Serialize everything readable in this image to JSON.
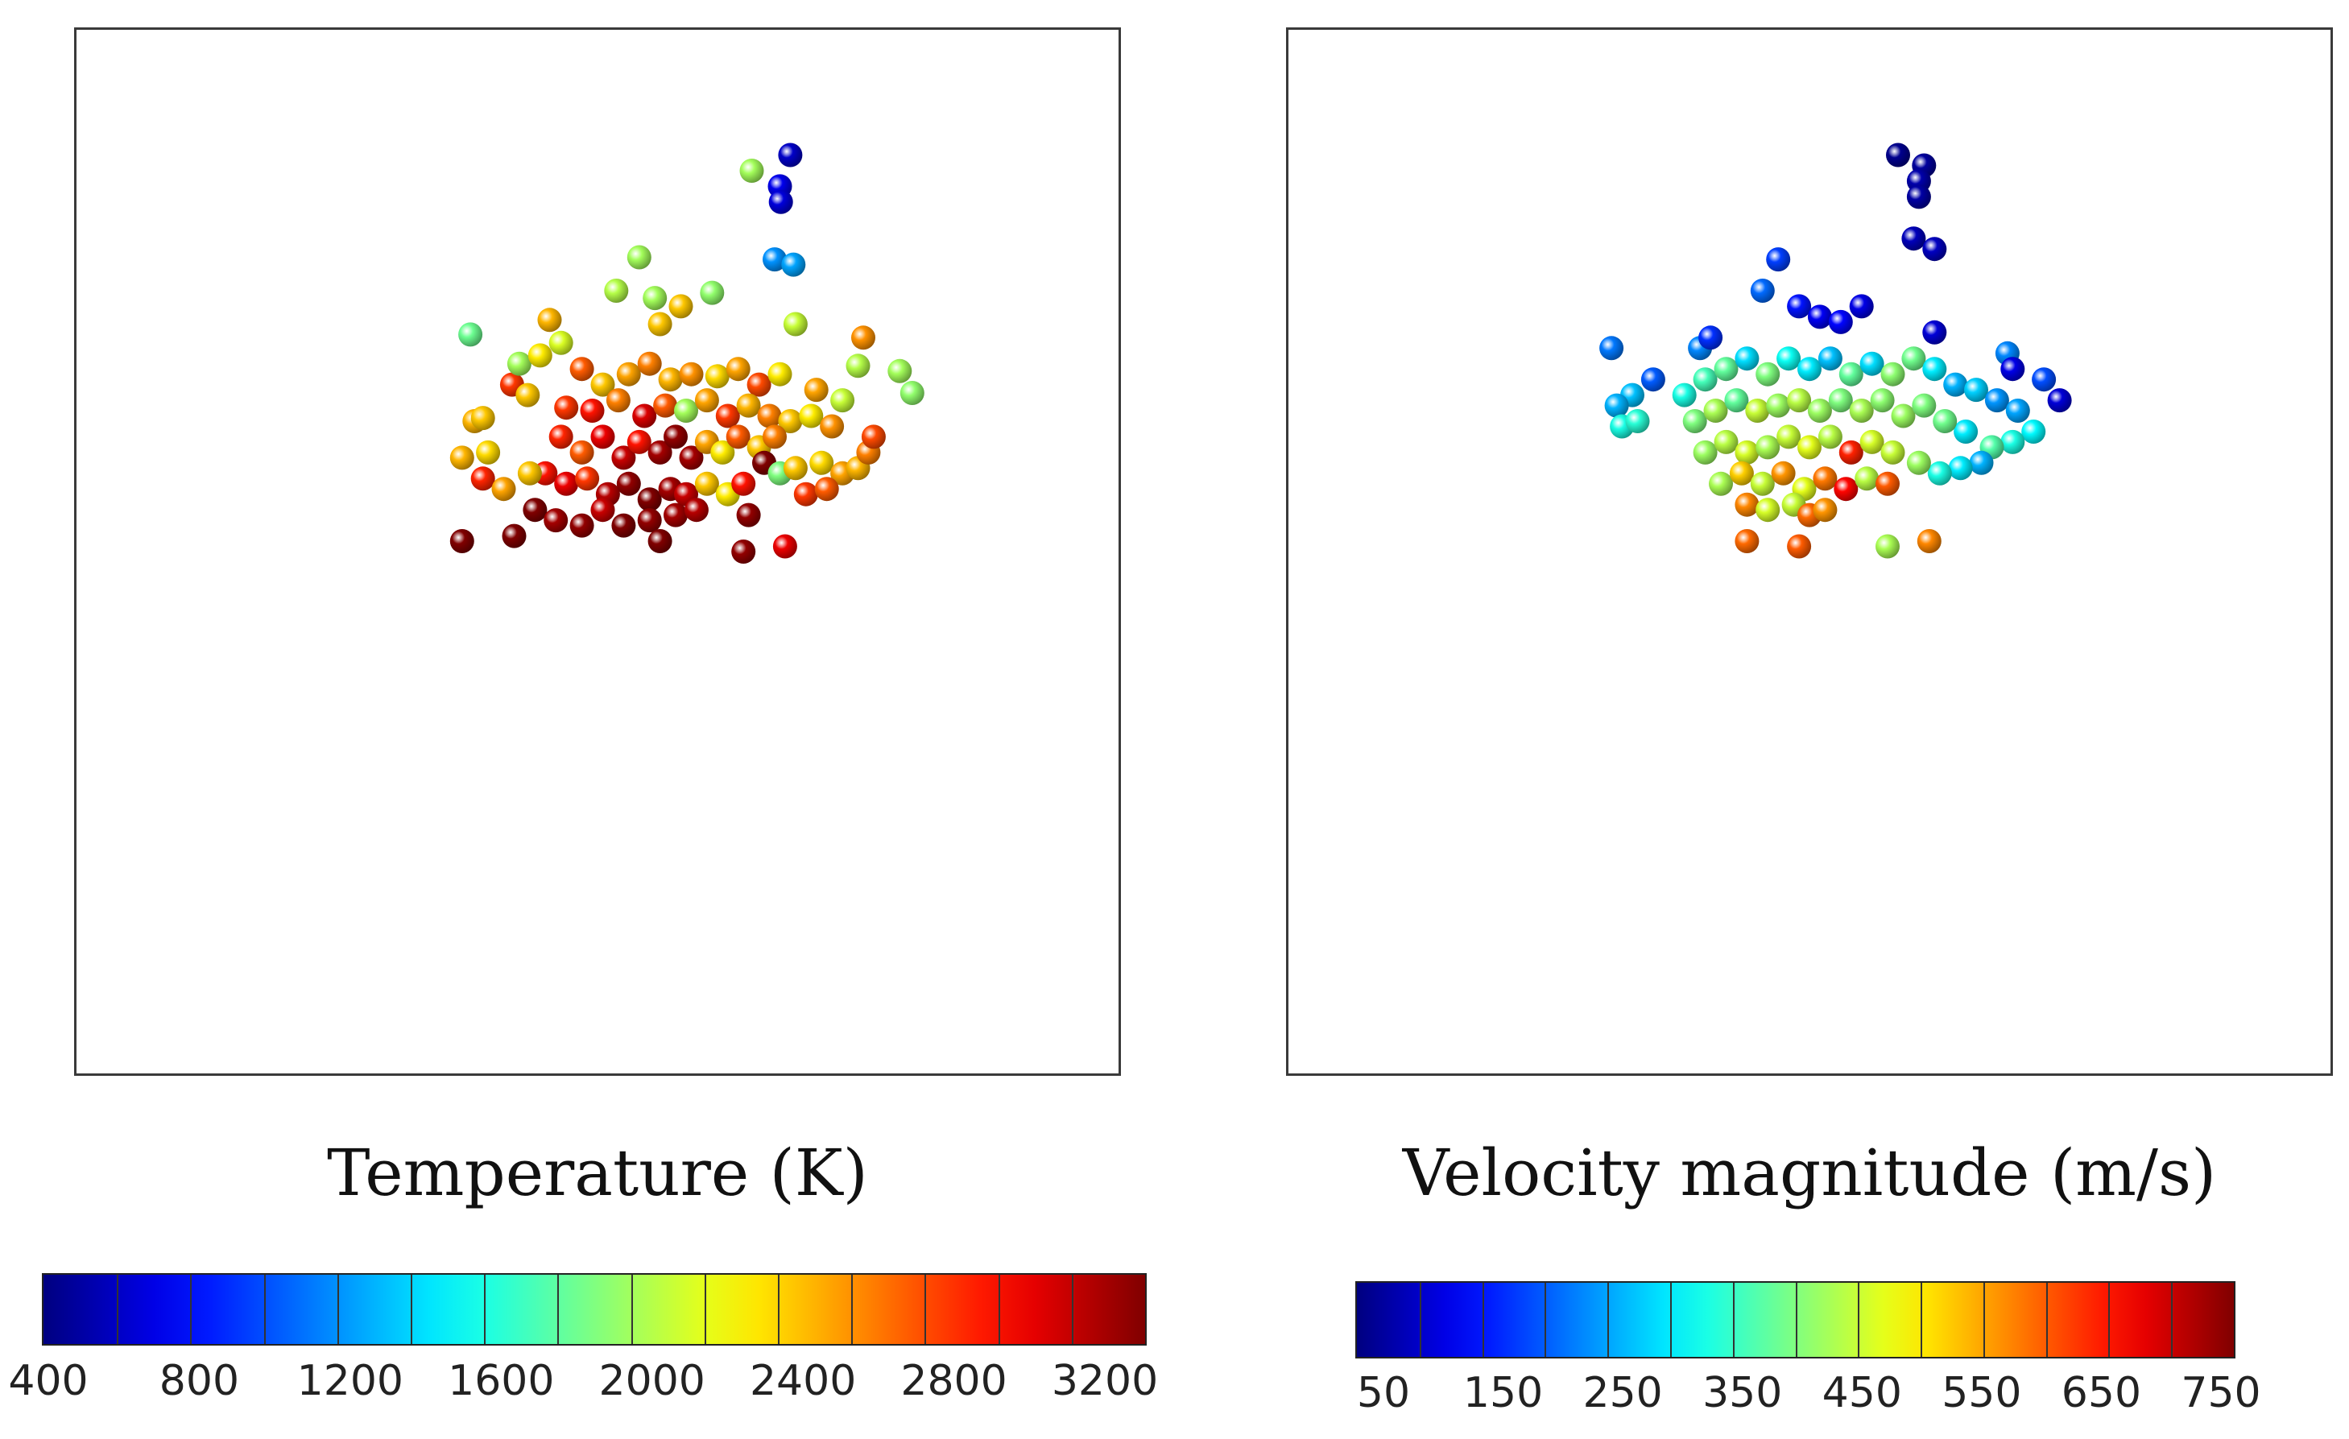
{
  "chart_data": [
    {
      "type": "scatter",
      "title": "Temperature (K)",
      "colormap": "jet",
      "colorbar": {
        "min": 400,
        "max": 3200,
        "ticks": [
          "400",
          "800",
          "1200",
          "1600",
          "2000",
          "2400",
          "2800",
          "3200"
        ]
      },
      "xlim": [
        0,
        100
      ],
      "ylim": [
        0,
        100
      ],
      "points": [
        {
          "x": 68.5,
          "y": 88.0,
          "v": 600
        },
        {
          "x": 67.5,
          "y": 85.0,
          "v": 700
        },
        {
          "x": 67.6,
          "y": 83.5,
          "v": 650
        },
        {
          "x": 64.8,
          "y": 86.5,
          "v": 1900
        },
        {
          "x": 67.0,
          "y": 78.0,
          "v": 1150
        },
        {
          "x": 68.8,
          "y": 77.5,
          "v": 1200
        },
        {
          "x": 54.0,
          "y": 78.2,
          "v": 1900
        },
        {
          "x": 51.8,
          "y": 75.0,
          "v": 1950
        },
        {
          "x": 55.5,
          "y": 74.3,
          "v": 1900
        },
        {
          "x": 61.0,
          "y": 74.8,
          "v": 1850
        },
        {
          "x": 58.0,
          "y": 73.5,
          "v": 2300
        },
        {
          "x": 56.0,
          "y": 71.8,
          "v": 2300
        },
        {
          "x": 37.8,
          "y": 70.8,
          "v": 1750
        },
        {
          "x": 45.4,
          "y": 72.2,
          "v": 2350
        },
        {
          "x": 46.5,
          "y": 70.0,
          "v": 2050
        },
        {
          "x": 69.0,
          "y": 71.8,
          "v": 2000
        },
        {
          "x": 75.5,
          "y": 70.5,
          "v": 2450
        },
        {
          "x": 75.0,
          "y": 67.8,
          "v": 1950
        },
        {
          "x": 79.0,
          "y": 67.3,
          "v": 1900
        },
        {
          "x": 80.2,
          "y": 65.2,
          "v": 1850
        },
        {
          "x": 73.5,
          "y": 64.5,
          "v": 2000
        },
        {
          "x": 71.0,
          "y": 65.5,
          "v": 2400
        },
        {
          "x": 41.8,
          "y": 66.0,
          "v": 2700
        },
        {
          "x": 43.3,
          "y": 65.0,
          "v": 2300
        },
        {
          "x": 38.2,
          "y": 62.5,
          "v": 2350
        },
        {
          "x": 39.0,
          "y": 62.8,
          "v": 2300
        },
        {
          "x": 47.0,
          "y": 63.8,
          "v": 2700
        },
        {
          "x": 42.5,
          "y": 68.0,
          "v": 1900
        },
        {
          "x": 44.5,
          "y": 68.8,
          "v": 2200
        },
        {
          "x": 48.5,
          "y": 67.5,
          "v": 2600
        },
        {
          "x": 50.5,
          "y": 66.0,
          "v": 2300
        },
        {
          "x": 53.0,
          "y": 67.0,
          "v": 2400
        },
        {
          "x": 55.0,
          "y": 68.0,
          "v": 2500
        },
        {
          "x": 57.0,
          "y": 66.5,
          "v": 2350
        },
        {
          "x": 59.0,
          "y": 67.0,
          "v": 2450
        },
        {
          "x": 61.5,
          "y": 66.8,
          "v": 2250
        },
        {
          "x": 63.5,
          "y": 67.5,
          "v": 2400
        },
        {
          "x": 65.5,
          "y": 66.0,
          "v": 2650
        },
        {
          "x": 67.5,
          "y": 67.0,
          "v": 2200
        },
        {
          "x": 49.5,
          "y": 63.5,
          "v": 2800
        },
        {
          "x": 52.0,
          "y": 64.5,
          "v": 2500
        },
        {
          "x": 54.5,
          "y": 63.0,
          "v": 2950
        },
        {
          "x": 56.5,
          "y": 64.0,
          "v": 2600
        },
        {
          "x": 58.5,
          "y": 63.5,
          "v": 1900
        },
        {
          "x": 60.5,
          "y": 64.5,
          "v": 2400
        },
        {
          "x": 62.5,
          "y": 63.0,
          "v": 2700
        },
        {
          "x": 64.5,
          "y": 64.0,
          "v": 2350
        },
        {
          "x": 66.5,
          "y": 63.0,
          "v": 2500
        },
        {
          "x": 68.5,
          "y": 62.5,
          "v": 2300
        },
        {
          "x": 70.5,
          "y": 63.0,
          "v": 2200
        },
        {
          "x": 72.5,
          "y": 62.0,
          "v": 2450
        },
        {
          "x": 46.5,
          "y": 61.0,
          "v": 2750
        },
        {
          "x": 48.5,
          "y": 59.5,
          "v": 2600
        },
        {
          "x": 50.5,
          "y": 61.0,
          "v": 2900
        },
        {
          "x": 52.5,
          "y": 59.0,
          "v": 3000
        },
        {
          "x": 54.0,
          "y": 60.5,
          "v": 2800
        },
        {
          "x": 56.0,
          "y": 59.5,
          "v": 3100
        },
        {
          "x": 57.5,
          "y": 61.0,
          "v": 3150
        },
        {
          "x": 59.0,
          "y": 59.0,
          "v": 3100
        },
        {
          "x": 60.5,
          "y": 60.5,
          "v": 2400
        },
        {
          "x": 62.0,
          "y": 59.5,
          "v": 2200
        },
        {
          "x": 63.5,
          "y": 61.0,
          "v": 2600
        },
        {
          "x": 65.5,
          "y": 60.0,
          "v": 2300
        },
        {
          "x": 67.0,
          "y": 61.0,
          "v": 2500
        },
        {
          "x": 66.0,
          "y": 58.5,
          "v": 3200
        },
        {
          "x": 67.5,
          "y": 57.5,
          "v": 1800
        },
        {
          "x": 69.0,
          "y": 58.0,
          "v": 2300
        },
        {
          "x": 71.5,
          "y": 58.5,
          "v": 2250
        },
        {
          "x": 73.5,
          "y": 57.5,
          "v": 2400
        },
        {
          "x": 75.0,
          "y": 58.0,
          "v": 2350
        },
        {
          "x": 76.0,
          "y": 59.5,
          "v": 2500
        },
        {
          "x": 76.5,
          "y": 61.0,
          "v": 2650
        },
        {
          "x": 45.0,
          "y": 57.5,
          "v": 2800
        },
        {
          "x": 47.0,
          "y": 56.5,
          "v": 2900
        },
        {
          "x": 49.0,
          "y": 57.0,
          "v": 2700
        },
        {
          "x": 51.0,
          "y": 55.5,
          "v": 3050
        },
        {
          "x": 53.0,
          "y": 56.5,
          "v": 3150
        },
        {
          "x": 55.0,
          "y": 55.0,
          "v": 3200
        },
        {
          "x": 57.0,
          "y": 56.0,
          "v": 3100
        },
        {
          "x": 58.5,
          "y": 55.5,
          "v": 3000
        },
        {
          "x": 60.5,
          "y": 56.5,
          "v": 2300
        },
        {
          "x": 62.5,
          "y": 55.5,
          "v": 2200
        },
        {
          "x": 64.0,
          "y": 56.5,
          "v": 2800
        },
        {
          "x": 70.0,
          "y": 55.5,
          "v": 2700
        },
        {
          "x": 72.0,
          "y": 56.0,
          "v": 2600
        },
        {
          "x": 39.0,
          "y": 57.0,
          "v": 2750
        },
        {
          "x": 41.0,
          "y": 56.0,
          "v": 2400
        },
        {
          "x": 43.5,
          "y": 57.5,
          "v": 2300
        },
        {
          "x": 39.5,
          "y": 59.5,
          "v": 2250
        },
        {
          "x": 37.0,
          "y": 59.0,
          "v": 2350
        },
        {
          "x": 44.0,
          "y": 54.0,
          "v": 3200
        },
        {
          "x": 46.0,
          "y": 53.0,
          "v": 3100
        },
        {
          "x": 48.5,
          "y": 52.5,
          "v": 3150
        },
        {
          "x": 50.5,
          "y": 54.0,
          "v": 3000
        },
        {
          "x": 52.5,
          "y": 52.5,
          "v": 3200
        },
        {
          "x": 55.0,
          "y": 53.0,
          "v": 3150
        },
        {
          "x": 57.5,
          "y": 53.5,
          "v": 3100
        },
        {
          "x": 59.5,
          "y": 54.0,
          "v": 3050
        },
        {
          "x": 64.5,
          "y": 53.5,
          "v": 3150
        },
        {
          "x": 42.0,
          "y": 51.5,
          "v": 3200
        },
        {
          "x": 56.0,
          "y": 51.0,
          "v": 3200
        },
        {
          "x": 64.0,
          "y": 50.0,
          "v": 3150
        },
        {
          "x": 68.0,
          "y": 50.5,
          "v": 2900
        },
        {
          "x": 37.0,
          "y": 51.0,
          "v": 3200
        }
      ]
    },
    {
      "type": "scatter",
      "title": "Velocity magnitude (m/s)",
      "colormap": "jet",
      "colorbar": {
        "min": 50,
        "max": 750,
        "ticks": [
          "50",
          "150",
          "250",
          "350",
          "450",
          "550",
          "650",
          "750"
        ]
      },
      "xlim": [
        0,
        100
      ],
      "ylim": [
        0,
        100
      ],
      "points": [
        {
          "x": 58.5,
          "y": 88.0,
          "v": 60
        },
        {
          "x": 61.0,
          "y": 87.0,
          "v": 70
        },
        {
          "x": 60.5,
          "y": 85.5,
          "v": 80
        },
        {
          "x": 60.5,
          "y": 84.0,
          "v": 75
        },
        {
          "x": 60.0,
          "y": 80.0,
          "v": 90
        },
        {
          "x": 62.0,
          "y": 79.0,
          "v": 95
        },
        {
          "x": 47.0,
          "y": 78.0,
          "v": 180
        },
        {
          "x": 45.5,
          "y": 75.0,
          "v": 210
        },
        {
          "x": 49.0,
          "y": 73.5,
          "v": 150
        },
        {
          "x": 51.0,
          "y": 72.5,
          "v": 130
        },
        {
          "x": 53.0,
          "y": 72.0,
          "v": 140
        },
        {
          "x": 55.0,
          "y": 73.5,
          "v": 120
        },
        {
          "x": 39.5,
          "y": 69.5,
          "v": 230
        },
        {
          "x": 31.0,
          "y": 69.5,
          "v": 220
        },
        {
          "x": 40.5,
          "y": 70.5,
          "v": 170
        },
        {
          "x": 62.0,
          "y": 71.0,
          "v": 110
        },
        {
          "x": 69.0,
          "y": 69.0,
          "v": 230
        },
        {
          "x": 69.5,
          "y": 67.5,
          "v": 120
        },
        {
          "x": 72.5,
          "y": 66.5,
          "v": 190
        },
        {
          "x": 74.0,
          "y": 64.5,
          "v": 110
        },
        {
          "x": 33.0,
          "y": 65.0,
          "v": 270
        },
        {
          "x": 35.0,
          "y": 66.5,
          "v": 200
        },
        {
          "x": 31.5,
          "y": 64.0,
          "v": 260
        },
        {
          "x": 32.0,
          "y": 62.0,
          "v": 330
        },
        {
          "x": 33.5,
          "y": 62.5,
          "v": 340
        },
        {
          "x": 38.0,
          "y": 65.0,
          "v": 330
        },
        {
          "x": 40.0,
          "y": 66.5,
          "v": 360
        },
        {
          "x": 42.0,
          "y": 67.5,
          "v": 380
        },
        {
          "x": 44.0,
          "y": 68.5,
          "v": 290
        },
        {
          "x": 46.0,
          "y": 67.0,
          "v": 400
        },
        {
          "x": 48.0,
          "y": 68.5,
          "v": 320
        },
        {
          "x": 50.0,
          "y": 67.5,
          "v": 300
        },
        {
          "x": 52.0,
          "y": 68.5,
          "v": 270
        },
        {
          "x": 54.0,
          "y": 67.0,
          "v": 380
        },
        {
          "x": 56.0,
          "y": 68.0,
          "v": 290
        },
        {
          "x": 58.0,
          "y": 67.0,
          "v": 410
        },
        {
          "x": 60.0,
          "y": 68.5,
          "v": 390
        },
        {
          "x": 62.0,
          "y": 67.5,
          "v": 300
        },
        {
          "x": 64.0,
          "y": 66.0,
          "v": 260
        },
        {
          "x": 66.0,
          "y": 65.5,
          "v": 280
        },
        {
          "x": 68.0,
          "y": 64.5,
          "v": 240
        },
        {
          "x": 70.0,
          "y": 63.5,
          "v": 250
        },
        {
          "x": 71.5,
          "y": 61.5,
          "v": 310
        },
        {
          "x": 69.5,
          "y": 60.5,
          "v": 330
        },
        {
          "x": 67.5,
          "y": 60.0,
          "v": 370
        },
        {
          "x": 65.0,
          "y": 61.5,
          "v": 300
        },
        {
          "x": 66.5,
          "y": 58.5,
          "v": 260
        },
        {
          "x": 64.5,
          "y": 58.0,
          "v": 300
        },
        {
          "x": 62.5,
          "y": 57.5,
          "v": 330
        },
        {
          "x": 60.5,
          "y": 58.5,
          "v": 420
        },
        {
          "x": 39.0,
          "y": 62.5,
          "v": 400
        },
        {
          "x": 41.0,
          "y": 63.5,
          "v": 430
        },
        {
          "x": 43.0,
          "y": 64.5,
          "v": 380
        },
        {
          "x": 45.0,
          "y": 63.5,
          "v": 450
        },
        {
          "x": 47.0,
          "y": 64.0,
          "v": 420
        },
        {
          "x": 49.0,
          "y": 64.5,
          "v": 440
        },
        {
          "x": 51.0,
          "y": 63.5,
          "v": 420
        },
        {
          "x": 53.0,
          "y": 64.5,
          "v": 400
        },
        {
          "x": 55.0,
          "y": 63.5,
          "v": 430
        },
        {
          "x": 57.0,
          "y": 64.5,
          "v": 410
        },
        {
          "x": 59.0,
          "y": 63.0,
          "v": 420
        },
        {
          "x": 61.0,
          "y": 64.0,
          "v": 400
        },
        {
          "x": 63.0,
          "y": 62.5,
          "v": 390
        },
        {
          "x": 40.0,
          "y": 59.5,
          "v": 420
        },
        {
          "x": 42.0,
          "y": 60.5,
          "v": 440
        },
        {
          "x": 44.0,
          "y": 59.5,
          "v": 460
        },
        {
          "x": 46.0,
          "y": 60.0,
          "v": 430
        },
        {
          "x": 48.0,
          "y": 61.0,
          "v": 450
        },
        {
          "x": 50.0,
          "y": 60.0,
          "v": 470
        },
        {
          "x": 52.0,
          "y": 61.0,
          "v": 440
        },
        {
          "x": 54.0,
          "y": 59.5,
          "v": 640
        },
        {
          "x": 56.0,
          "y": 60.5,
          "v": 460
        },
        {
          "x": 58.0,
          "y": 59.5,
          "v": 450
        },
        {
          "x": 41.5,
          "y": 56.5,
          "v": 430
        },
        {
          "x": 43.5,
          "y": 57.5,
          "v": 520
        },
        {
          "x": 45.5,
          "y": 56.5,
          "v": 450
        },
        {
          "x": 47.5,
          "y": 57.5,
          "v": 560
        },
        {
          "x": 49.5,
          "y": 56.0,
          "v": 470
        },
        {
          "x": 51.5,
          "y": 57.0,
          "v": 580
        },
        {
          "x": 53.5,
          "y": 56.0,
          "v": 660
        },
        {
          "x": 55.5,
          "y": 57.0,
          "v": 440
        },
        {
          "x": 57.5,
          "y": 56.5,
          "v": 600
        },
        {
          "x": 44.0,
          "y": 54.5,
          "v": 570
        },
        {
          "x": 46.0,
          "y": 54.0,
          "v": 460
        },
        {
          "x": 48.5,
          "y": 54.5,
          "v": 450
        },
        {
          "x": 50.0,
          "y": 53.5,
          "v": 590
        },
        {
          "x": 51.5,
          "y": 54.0,
          "v": 560
        },
        {
          "x": 44.0,
          "y": 51.0,
          "v": 590
        },
        {
          "x": 49.0,
          "y": 50.5,
          "v": 600
        },
        {
          "x": 57.5,
          "y": 50.5,
          "v": 430
        },
        {
          "x": 61.5,
          "y": 51.0,
          "v": 570
        }
      ]
    }
  ]
}
